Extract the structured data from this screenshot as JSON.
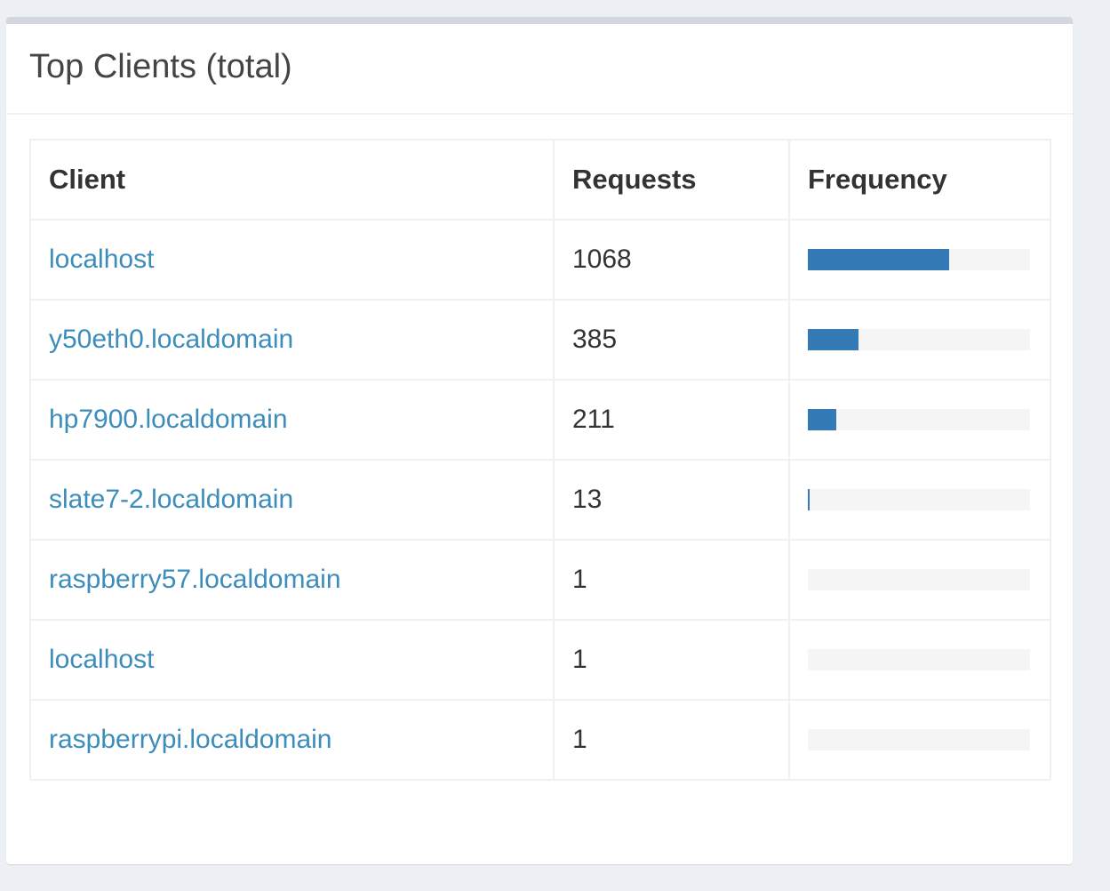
{
  "panel": {
    "title": "Top Clients (total)"
  },
  "table": {
    "headers": {
      "client": "Client",
      "requests": "Requests",
      "frequency": "Frequency"
    },
    "rows": [
      {
        "client": "localhost",
        "requests": "1068",
        "frequency_pct": 63.6
      },
      {
        "client": "y50eth0.localdomain",
        "requests": "385",
        "frequency_pct": 22.9
      },
      {
        "client": "hp7900.localdomain",
        "requests": "211",
        "frequency_pct": 12.6
      },
      {
        "client": "slate7-2.localdomain",
        "requests": "13",
        "frequency_pct": 0.8
      },
      {
        "client": "raspberry57.localdomain",
        "requests": "1",
        "frequency_pct": 0.06
      },
      {
        "client": "localhost",
        "requests": "1",
        "frequency_pct": 0.06
      },
      {
        "client": "raspberrypi.localdomain",
        "requests": "1",
        "frequency_pct": 0.06
      }
    ]
  },
  "colors": {
    "link": "#3c8dbc",
    "bar_fill": "#337ab7",
    "bar_track": "#f5f5f5",
    "box_border_top": "#d2d6de"
  }
}
